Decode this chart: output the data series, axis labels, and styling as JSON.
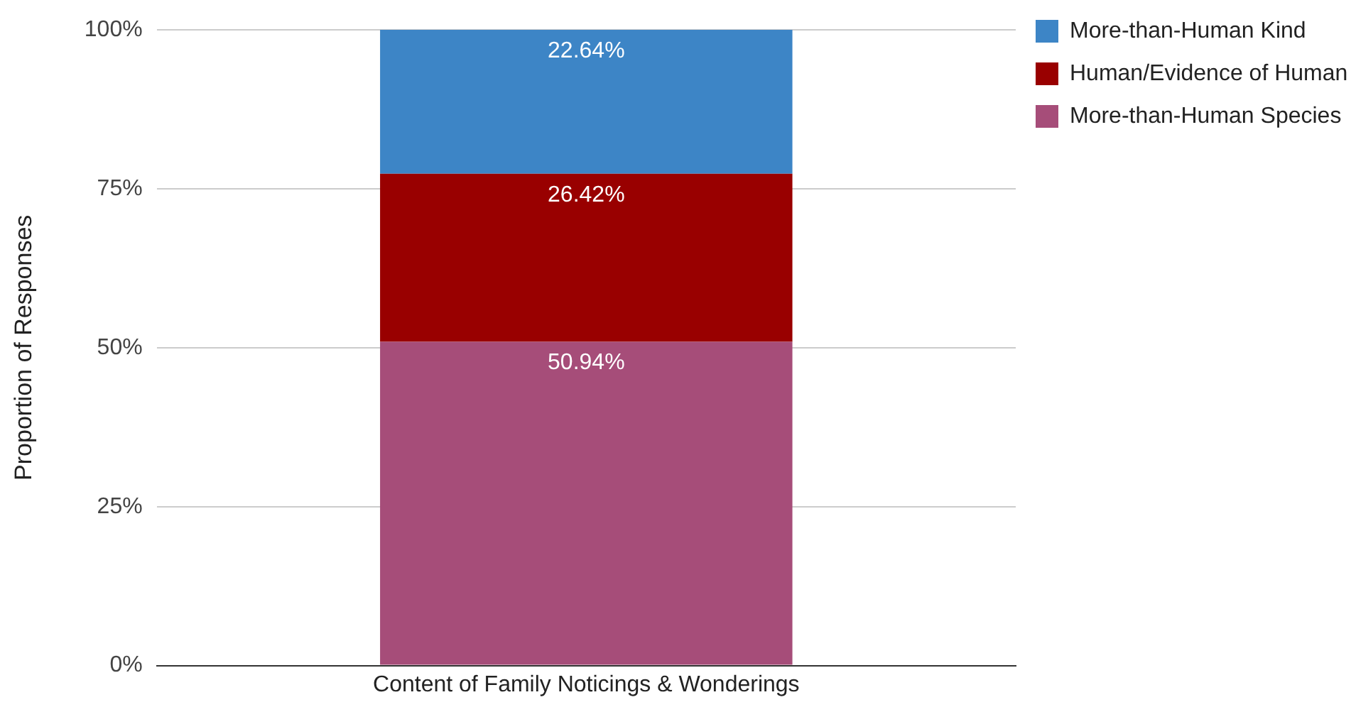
{
  "chart_data": {
    "type": "bar",
    "stacked": true,
    "ylabel": "Proportion of Responses",
    "categories": [
      "Content of Family Noticings & Wonderings"
    ],
    "series": [
      {
        "name": "More-than-Human Species",
        "color": "#a64d79",
        "values": [
          50.94
        ],
        "value_labels": [
          "50.94%"
        ]
      },
      {
        "name": "Human/Evidence of Human",
        "color": "#990000",
        "values": [
          26.42
        ],
        "value_labels": [
          "26.42%"
        ]
      },
      {
        "name": "More-than-Human Kind",
        "color": "#3d85c6",
        "values": [
          22.64
        ],
        "value_labels": [
          "22.64%"
        ]
      }
    ],
    "ylim": [
      0,
      100
    ],
    "yticks": [
      {
        "value": 0,
        "label": "0%"
      },
      {
        "value": 25,
        "label": "25%"
      },
      {
        "value": 50,
        "label": "50%"
      },
      {
        "value": 75,
        "label": "75%"
      },
      {
        "value": 100,
        "label": "100%"
      }
    ],
    "grid": "y",
    "legend": "top right"
  }
}
